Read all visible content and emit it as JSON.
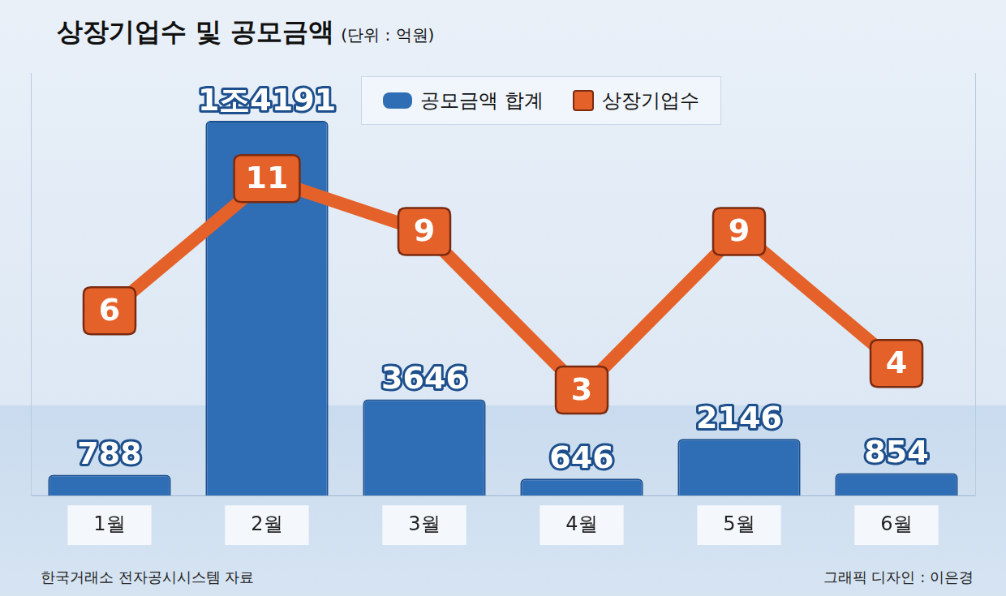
{
  "chart_data": {
    "type": "bar",
    "title": "상장기업수 및 공모금액",
    "subtitle": "(단위 : 억원)",
    "categories": [
      "1월",
      "2월",
      "3월",
      "4월",
      "5월",
      "6월"
    ],
    "series": [
      {
        "name": "공모금액 합계",
        "type": "bar",
        "color": "#2f6db5",
        "values": [
          788,
          14191,
          3646,
          646,
          2146,
          854
        ],
        "value_labels": [
          "788",
          "1조4191",
          "3646",
          "646",
          "2146",
          "854"
        ]
      },
      {
        "name": "상장기업수",
        "type": "line",
        "color": "#e4622a",
        "axis": "y2",
        "values": [
          6,
          11,
          9,
          3,
          9,
          4
        ]
      }
    ],
    "ylim": [
      0,
      16000
    ],
    "y2lim": [
      -1,
      15
    ],
    "data_labels": true,
    "tick_labels": "x",
    "legend": "top",
    "grid": false,
    "annotations": [
      "한국거래소 전자공시시스템 자료",
      "그래픽 디자인 : 이은경"
    ]
  }
}
